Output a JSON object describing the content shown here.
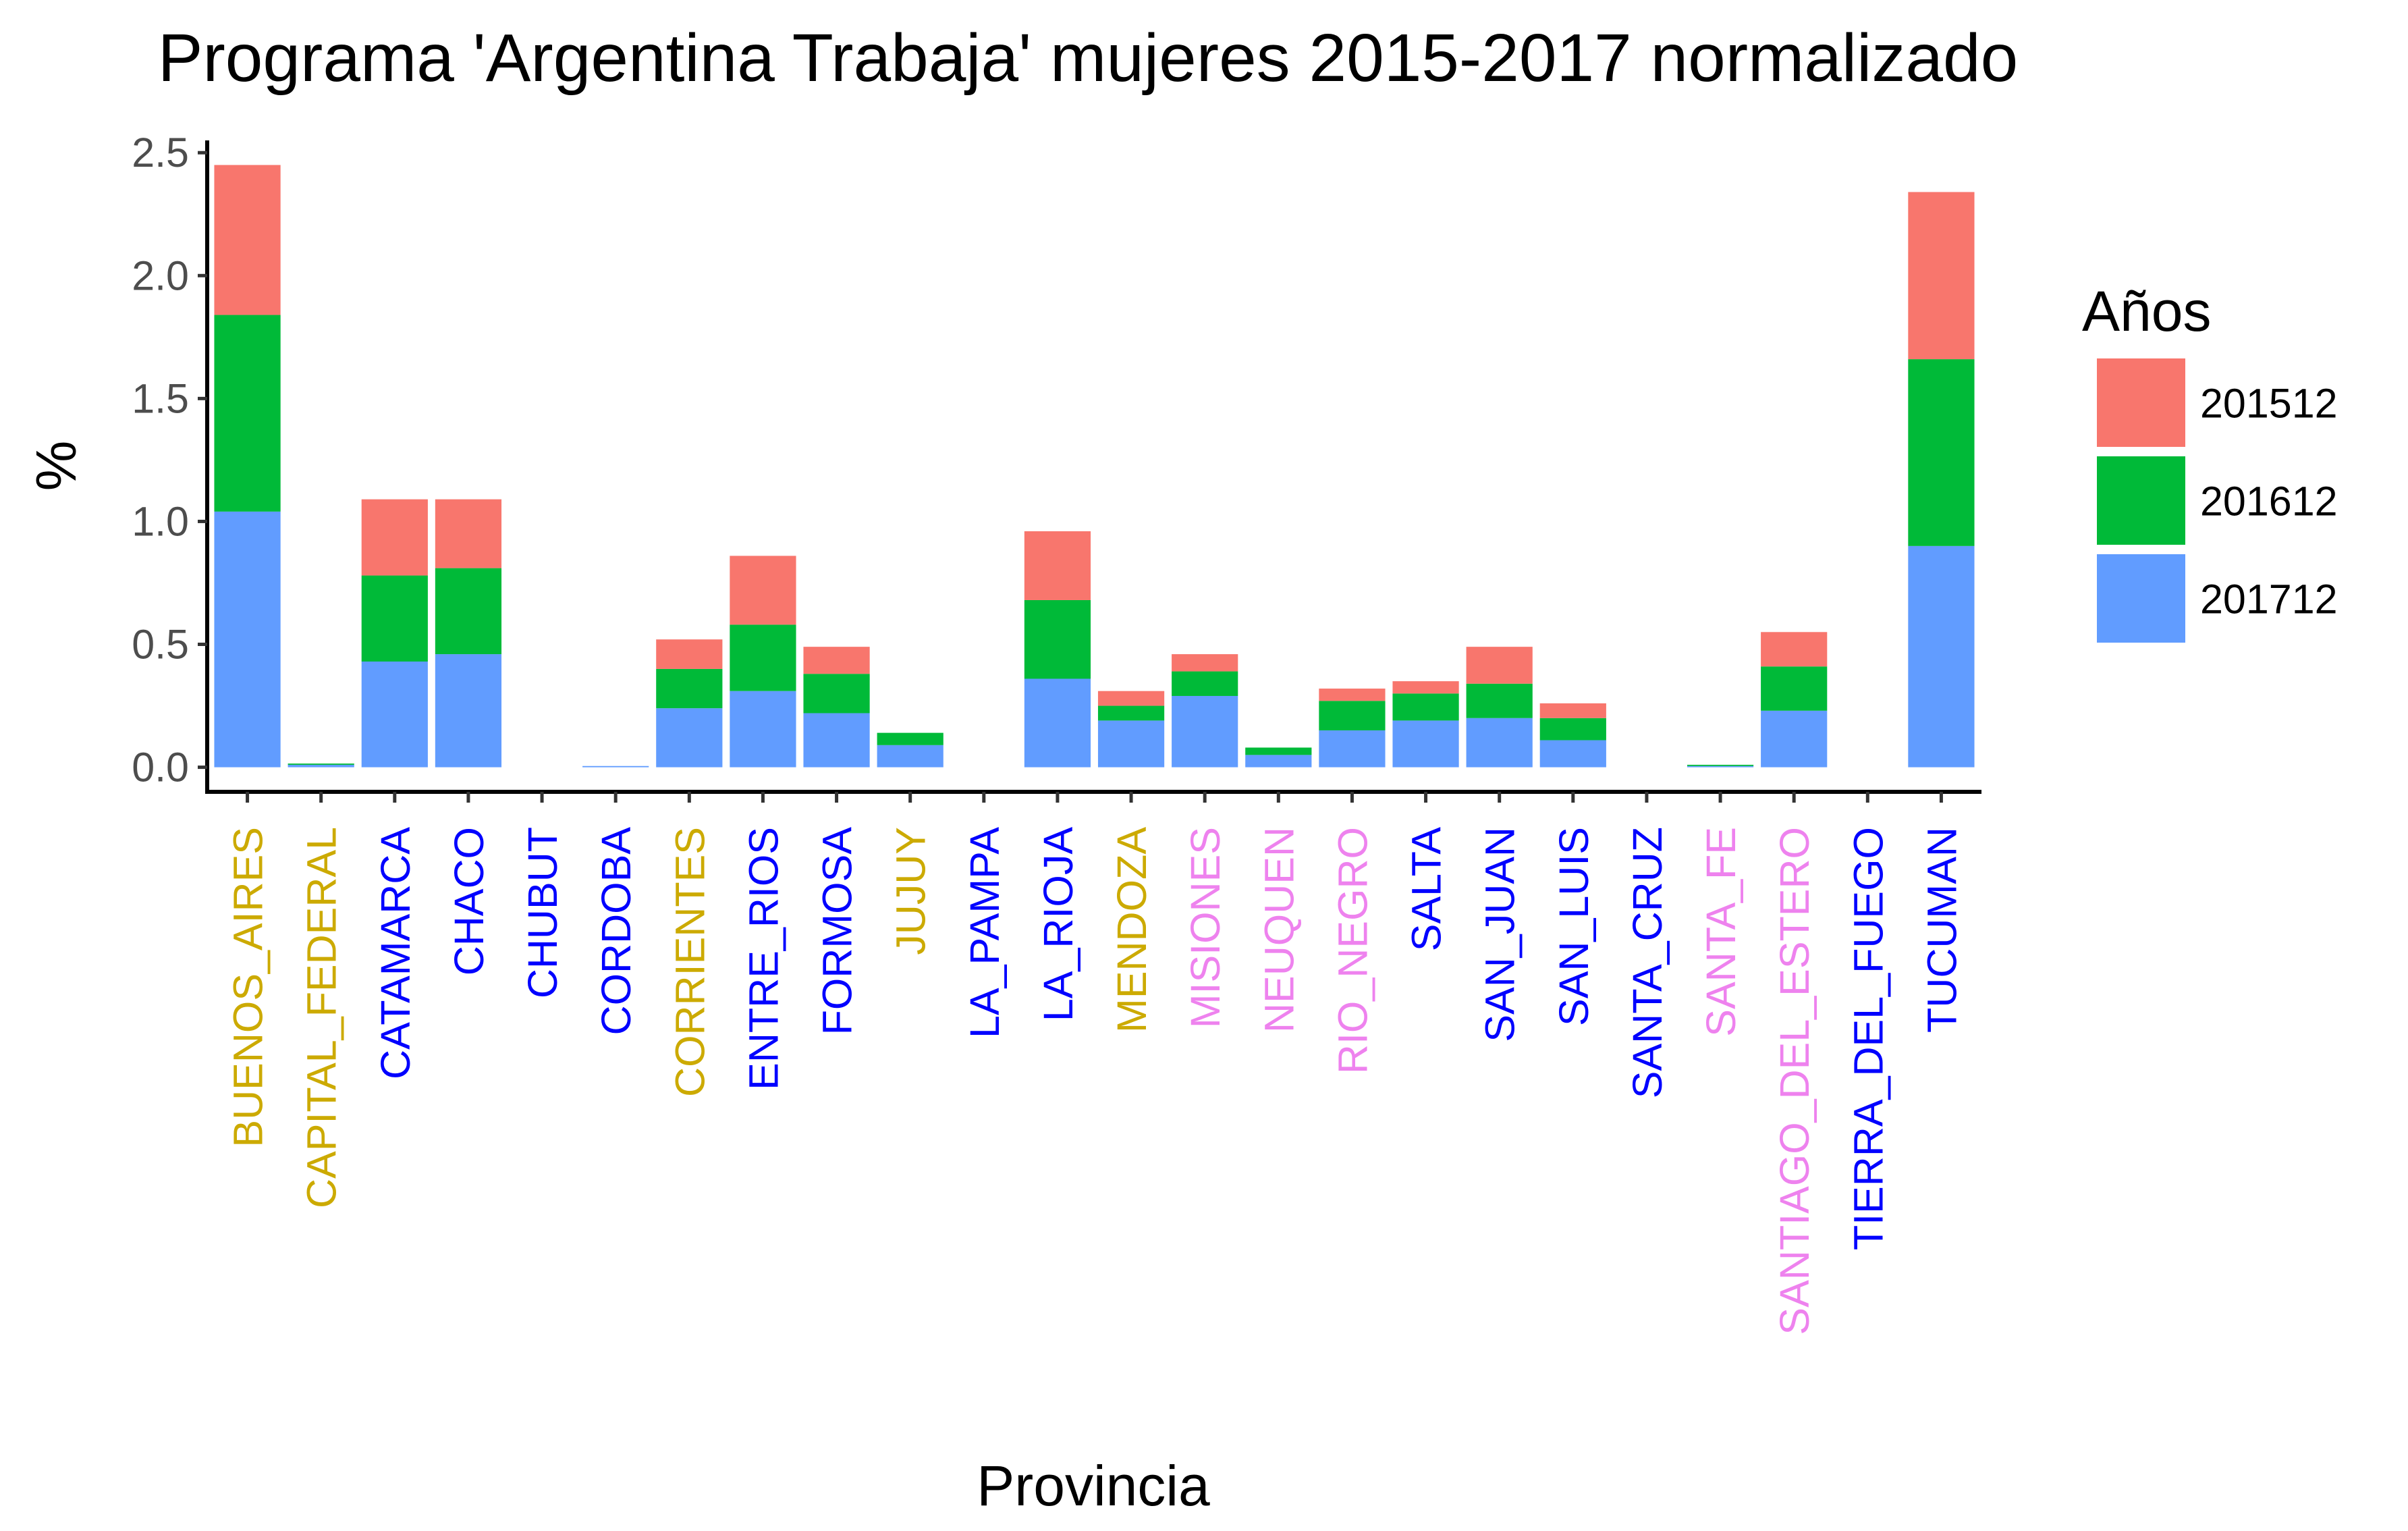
{
  "chart_data": {
    "type": "bar",
    "stacked": true,
    "title": "Programa 'Argentina Trabaja' mujeres 2015-2017 normalizado",
    "xlabel": "Provincia",
    "ylabel": "%",
    "ylim": [
      -0.1,
      2.55
    ],
    "yticks": [
      "0.0",
      "0.5",
      "1.0",
      "1.5",
      "2.0",
      "2.5"
    ],
    "legend": {
      "title": "Años",
      "position": "right",
      "entries": [
        {
          "name": "201512",
          "color": "#F8766D"
        },
        {
          "name": "201612",
          "color": "#00BA38"
        },
        {
          "name": "201712",
          "color": "#619CFF"
        }
      ]
    },
    "categories": [
      "BUENOS_AIRES",
      "CAPITAL_FEDERAL",
      "CATAMARCA",
      "CHACO",
      "CHUBUT",
      "CORDOBA",
      "CORRIENTES",
      "ENTRE_RIOS",
      "FORMOSA",
      "JUJUY",
      "LA_PAMPA",
      "LA_RIOJA",
      "MENDOZA",
      "MISIONES",
      "NEUQUEN",
      "RIO_NEGRO",
      "SALTA",
      "SAN_JUAN",
      "SAN_LUIS",
      "SANTA_CRUZ",
      "SANTA_FE",
      "SANTIAGO_DEL_ESTERO",
      "TIERRA_DEL_FUEGO",
      "TUCUMAN"
    ],
    "category_colors": [
      "#CCAA00",
      "#CCAA00",
      "#0000FF",
      "#0000FF",
      "#0000FF",
      "#0000FF",
      "#CCAA00",
      "#0000FF",
      "#0000FF",
      "#CCAA00",
      "#0000FF",
      "#0000FF",
      "#CCAA00",
      "#EE82EE",
      "#EE82EE",
      "#EE82EE",
      "#0000FF",
      "#0000FF",
      "#0000FF",
      "#0000FF",
      "#EE82EE",
      "#EE82EE",
      "#0000FF",
      "#0000FF"
    ],
    "series": [
      {
        "name": "201712",
        "values": [
          1.04,
          0.01,
          0.43,
          0.46,
          0.0,
          0.005,
          0.24,
          0.31,
          0.22,
          0.09,
          0.0,
          0.36,
          0.19,
          0.29,
          0.05,
          0.15,
          0.19,
          0.2,
          0.11,
          0.0,
          0.005,
          0.23,
          0.0,
          0.9
        ]
      },
      {
        "name": "201612",
        "values": [
          0.8,
          0.005,
          0.35,
          0.35,
          0.0,
          0.0,
          0.16,
          0.27,
          0.16,
          0.05,
          0.0,
          0.32,
          0.06,
          0.1,
          0.03,
          0.12,
          0.11,
          0.14,
          0.09,
          0.0,
          0.005,
          0.18,
          0.0,
          0.76
        ]
      },
      {
        "name": "201512",
        "values": [
          0.61,
          0.0,
          0.31,
          0.28,
          0.0,
          0.0,
          0.12,
          0.28,
          0.11,
          0.0,
          0.0,
          0.28,
          0.06,
          0.07,
          0.0,
          0.05,
          0.05,
          0.15,
          0.06,
          0.0,
          0.0,
          0.14,
          0.0,
          0.68
        ]
      }
    ]
  }
}
